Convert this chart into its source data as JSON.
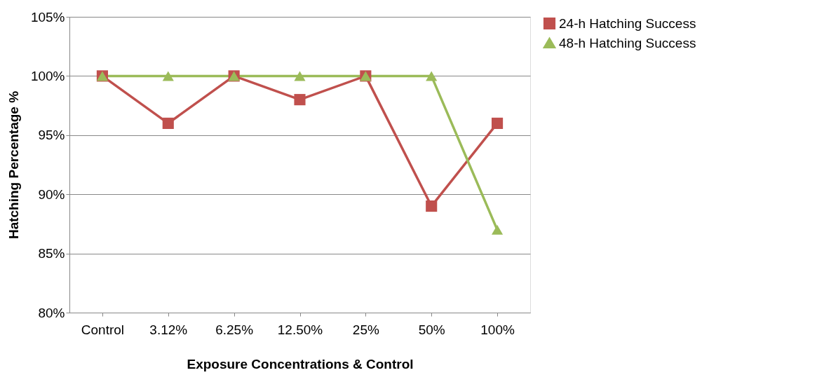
{
  "chart_data": {
    "type": "line",
    "xlabel": "Exposure Concentrations & Control",
    "ylabel": "Hatching Percentage %",
    "categories": [
      "Control",
      "3.12%",
      "6.25%",
      "12.50%",
      "25%",
      "50%",
      "100%"
    ],
    "series": [
      {
        "name": "24-h Hatching Success",
        "color": "#c0504d",
        "marker": "square",
        "values": [
          100,
          96,
          100,
          98,
          100,
          89,
          96
        ]
      },
      {
        "name": "48-h Hatching Success",
        "color": "#9bbb59",
        "marker": "triangle",
        "values": [
          100,
          100,
          100,
          100,
          100,
          100,
          87
        ]
      }
    ],
    "ylim": [
      80,
      105
    ],
    "yticks": [
      {
        "value": 80,
        "label": "80%"
      },
      {
        "value": 85,
        "label": "85%"
      },
      {
        "value": 90,
        "label": "90%"
      },
      {
        "value": 95,
        "label": "95%"
      },
      {
        "value": 100,
        "label": "100%"
      },
      {
        "value": 105,
        "label": "105%"
      }
    ],
    "grid": "y",
    "legend": "right",
    "line_style": "solid"
  }
}
